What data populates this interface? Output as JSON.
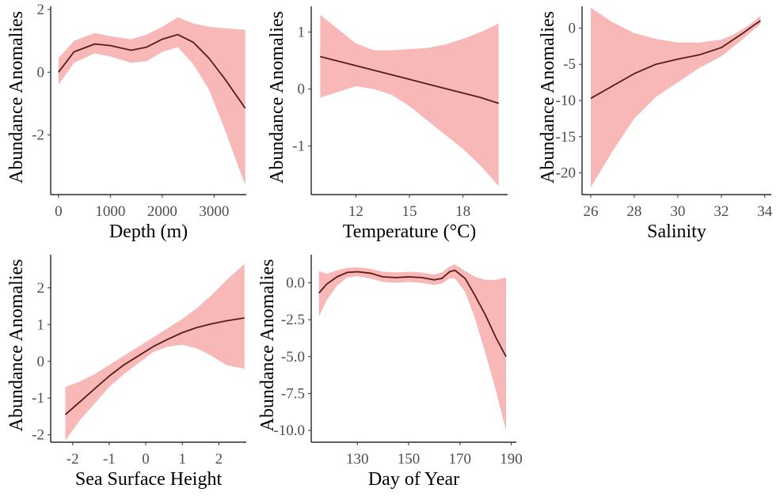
{
  "chart_data": [
    {
      "type": "line",
      "xlabel": "Depth (m)",
      "ylabel": "Abundance Anomalies",
      "xlim": [
        -150,
        3620
      ],
      "ylim": [
        -3.9,
        2.1
      ],
      "xticks": [
        0,
        1000,
        2000,
        3000
      ],
      "xtick_labels": [
        "0",
        "1000",
        "2000",
        "3000"
      ],
      "yticks": [
        -2,
        0,
        2
      ],
      "ytick_labels": [
        "-2",
        "0",
        "2"
      ],
      "x": [
        0,
        300,
        700,
        1000,
        1400,
        1700,
        2000,
        2300,
        2600,
        2900,
        3200,
        3600
      ],
      "y": [
        0.0,
        0.65,
        0.9,
        0.85,
        0.7,
        0.8,
        1.05,
        1.2,
        0.95,
        0.45,
        -0.2,
        -1.15
      ],
      "lower": [
        -0.4,
        0.3,
        0.6,
        0.5,
        0.3,
        0.35,
        0.65,
        0.8,
        0.25,
        -0.55,
        -1.8,
        -3.6
      ],
      "upper": [
        0.45,
        1.0,
        1.25,
        1.15,
        1.05,
        1.2,
        1.45,
        1.75,
        1.55,
        1.45,
        1.4,
        1.35
      ],
      "line_color": "#5a1a1a",
      "band_color": "#f8b8b8"
    },
    {
      "type": "line",
      "xlabel": "Temperature (°C)",
      "ylabel": "Abundance Anomalies",
      "xlim": [
        9.5,
        20.5
      ],
      "ylim": [
        -1.85,
        1.45
      ],
      "xticks": [
        12,
        15,
        18
      ],
      "xtick_labels": [
        "12",
        "15",
        "18"
      ],
      "yticks": [
        -1,
        0,
        1
      ],
      "ytick_labels": [
        "-1",
        "0",
        "1"
      ],
      "x": [
        10,
        11,
        12,
        13,
        14,
        15,
        16,
        17,
        18,
        19,
        20
      ],
      "y": [
        0.57,
        0.49,
        0.41,
        0.33,
        0.25,
        0.17,
        0.09,
        0.01,
        -0.07,
        -0.15,
        -0.25
      ],
      "lower": [
        -0.15,
        -0.05,
        0.05,
        0.0,
        -0.1,
        -0.3,
        -0.55,
        -0.8,
        -1.05,
        -1.35,
        -1.7
      ],
      "upper": [
        1.3,
        1.05,
        0.8,
        0.68,
        0.68,
        0.7,
        0.72,
        0.78,
        0.88,
        1.0,
        1.15
      ],
      "line_color": "#5a1a1a",
      "band_color": "#f8b8b8"
    },
    {
      "type": "line",
      "xlabel": "Salinity",
      "ylabel": "Abundance Anomalies",
      "xlim": [
        25.6,
        34.3
      ],
      "ylim": [
        -23,
        3
      ],
      "xticks": [
        26,
        28,
        30,
        32,
        34
      ],
      "xtick_labels": [
        "26",
        "28",
        "30",
        "32",
        "34"
      ],
      "yticks": [
        -20,
        -15,
        -10,
        -5,
        0
      ],
      "ytick_labels": [
        "-20",
        "-15",
        "-10",
        "-5",
        "0"
      ],
      "x": [
        26,
        27,
        28,
        29,
        30,
        31,
        32,
        32.5,
        33,
        33.5,
        33.8
      ],
      "y": [
        -9.7,
        -8.0,
        -6.3,
        -5.0,
        -4.3,
        -3.7,
        -2.7,
        -1.7,
        -0.7,
        0.4,
        1.0
      ],
      "lower": [
        -22.0,
        -17.0,
        -12.5,
        -9.5,
        -7.5,
        -5.5,
        -3.9,
        -2.7,
        -1.5,
        -0.2,
        0.5
      ],
      "upper": [
        2.8,
        0.8,
        -0.7,
        -1.5,
        -2.0,
        -2.0,
        -1.6,
        -1.0,
        -0.1,
        0.9,
        1.7
      ],
      "line_color": "#5a1a1a",
      "band_color": "#f8b8b8"
    },
    {
      "type": "line",
      "xlabel": "Sea Surface Height",
      "ylabel": "Abundance Anomalies",
      "xlim": [
        -2.6,
        2.75
      ],
      "ylim": [
        -2.2,
        2.9
      ],
      "xticks": [
        -2,
        -1,
        0,
        1,
        2
      ],
      "xtick_labels": [
        "-2",
        "-1",
        "0",
        "1",
        "2"
      ],
      "yticks": [
        -2,
        -1,
        0,
        1,
        2
      ],
      "ytick_labels": [
        "-2",
        "-1",
        "0",
        "1",
        "2"
      ],
      "x": [
        -2.2,
        -1.8,
        -1.4,
        -1.0,
        -0.6,
        -0.2,
        0.2,
        0.6,
        1.0,
        1.4,
        1.8,
        2.2,
        2.7
      ],
      "y": [
        -1.45,
        -1.1,
        -0.75,
        -0.4,
        -0.1,
        0.15,
        0.4,
        0.6,
        0.78,
        0.92,
        1.02,
        1.1,
        1.18
      ],
      "lower": [
        -2.15,
        -1.6,
        -1.15,
        -0.7,
        -0.35,
        -0.05,
        0.25,
        0.4,
        0.45,
        0.35,
        0.15,
        -0.1,
        -0.2
      ],
      "upper": [
        -0.7,
        -0.55,
        -0.35,
        -0.1,
        0.15,
        0.4,
        0.65,
        0.9,
        1.15,
        1.45,
        1.8,
        2.2,
        2.65
      ],
      "line_color": "#5a1a1a",
      "band_color": "#f8b8b8"
    },
    {
      "type": "line",
      "xlabel": "Day of Year",
      "ylabel": "Abundance Anomalies",
      "xlim": [
        112,
        192
      ],
      "ylim": [
        -10.8,
        1.9
      ],
      "xticks": [
        130,
        150,
        170,
        190
      ],
      "xtick_labels": [
        "130",
        "150",
        "170",
        "190"
      ],
      "yticks": [
        -10,
        -7.5,
        -5,
        -2.5,
        0
      ],
      "ytick_labels": [
        "-10.0",
        "-7.5",
        "-5.0",
        "-2.5",
        "0.0"
      ],
      "x": [
        115,
        118,
        122,
        126,
        130,
        135,
        140,
        145,
        150,
        155,
        160,
        163,
        166,
        168,
        172,
        176,
        180,
        184,
        188
      ],
      "y": [
        -0.7,
        -0.1,
        0.4,
        0.7,
        0.75,
        0.65,
        0.4,
        0.35,
        0.4,
        0.35,
        0.2,
        0.3,
        0.75,
        0.85,
        0.3,
        -0.9,
        -2.2,
        -3.7,
        -5.0
      ],
      "lower": [
        -2.3,
        -1.2,
        -0.2,
        0.35,
        0.45,
        0.3,
        0.05,
        0.0,
        0.05,
        0.0,
        -0.15,
        -0.05,
        0.3,
        0.3,
        -0.6,
        -2.5,
        -4.8,
        -7.3,
        -10.0
      ],
      "upper": [
        0.8,
        0.6,
        0.85,
        1.0,
        1.05,
        0.95,
        0.75,
        0.7,
        0.75,
        0.7,
        0.55,
        0.7,
        1.1,
        1.25,
        0.8,
        0.4,
        0.2,
        0.2,
        0.35
      ],
      "line_color": "#5a1a1a",
      "band_color": "#f8b8b8"
    }
  ]
}
